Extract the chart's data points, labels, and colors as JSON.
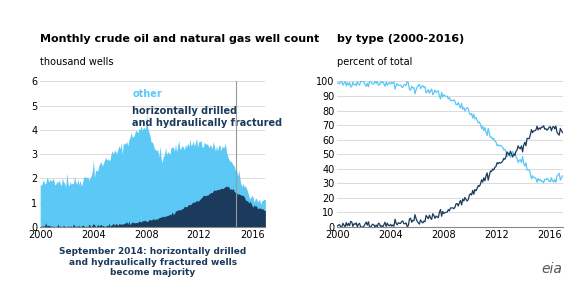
{
  "title_left": "Monthly crude oil and natural gas well count",
  "title_right": "by type (2000-2016)",
  "left_ylabel": "thousand wells",
  "right_ylabel": "percent of total",
  "left_ylim": [
    0,
    6
  ],
  "right_ylim": [
    0,
    100
  ],
  "left_yticks": [
    0,
    1,
    2,
    3,
    4,
    5,
    6
  ],
  "right_yticks": [
    0,
    10,
    20,
    30,
    40,
    50,
    60,
    70,
    80,
    90,
    100
  ],
  "color_light_blue": "#5BC8F5",
  "color_dark_blue": "#1B3A5C",
  "color_vline": "#999999",
  "vline_x": 2014.75,
  "legend_other": "other",
  "legend_hd": "horizontally drilled\nand hydraulically fractured",
  "annotation": "September 2014: horizontally drilled\nand hydraulically fractured wells\nbecome majority",
  "xticks": [
    2000,
    2004,
    2008,
    2012,
    2016
  ]
}
